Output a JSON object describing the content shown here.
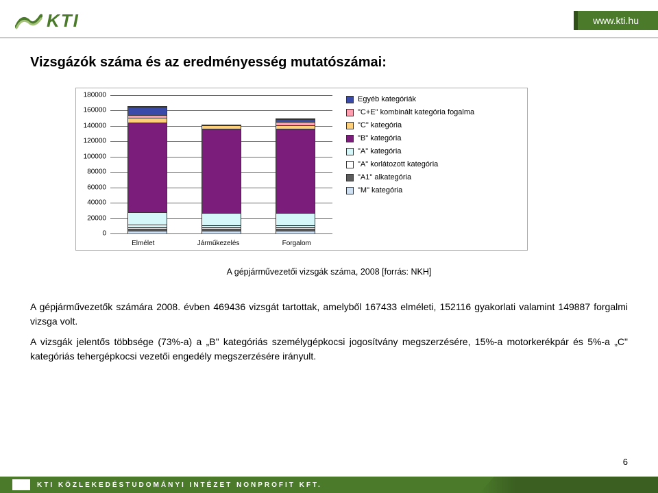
{
  "header": {
    "logo_text": "KTI",
    "url": "www.kti.hu"
  },
  "title": "Vizsgázók száma és az eredményesség mutatószámai:",
  "chart": {
    "type": "stacked-bar",
    "ymax": 180000,
    "ytick_step": 20000,
    "yticks": [
      "0",
      "20000",
      "40000",
      "60000",
      "80000",
      "100000",
      "120000",
      "140000",
      "160000",
      "180000"
    ],
    "categories": [
      "Elmélet",
      "Járműkezelés",
      "Forgalom"
    ],
    "series": [
      {
        "name": "Egyéb kategóriák",
        "color": "#3a4aa8"
      },
      {
        "name": "\"C+E\" kombinált kategória fogalma",
        "color": "#ff9fb0"
      },
      {
        "name": "\"C\" kategória",
        "color": "#ffd07a"
      },
      {
        "name": "\"B\" kategória",
        "color": "#7b1e7b"
      },
      {
        "name": "\"A\" kategória",
        "color": "#d6f7fa"
      },
      {
        "name": "\"A\" korlátozott kategória",
        "color": "#ffffff"
      },
      {
        "name": "\"A1\" alkategória",
        "color": "#5c5c5c"
      },
      {
        "name": "\"M\" kategória",
        "color": "#cfe0f2"
      }
    ],
    "stacks": [
      [
        4000,
        2000,
        2500,
        3000,
        16000,
        118000,
        6000,
        4000,
        10000
      ],
      [
        4000,
        2000,
        2000,
        3000,
        16000,
        110000,
        5000,
        0,
        0
      ],
      [
        4000,
        2000,
        2000,
        3000,
        16000,
        110000,
        5000,
        4000,
        4000
      ]
    ],
    "stack_colors": [
      "#cfe0f2",
      "#5c5c5c",
      "#ffffff",
      "#d6f7fa",
      "#d6f7fa",
      "#7b1e7b",
      "#ffd07a",
      "#ff9fb0",
      "#3a4aa8"
    ],
    "background_color": "#ffffff",
    "gridline_color": "#666666",
    "text_color": "#000000"
  },
  "caption": "A gépjárművezetői vizsgák száma, 2008 [forrás: NKH]",
  "body": {
    "p1": "A gépjárművezetők számára 2008. évben 469436 vizsgát tartottak, amelyből 167433 elméleti, 152116 gyakorlati valamint 149887 forgalmi vizsga volt.",
    "p2": "A vizsgák jelentős többsége (73%-a) a „B\" kategóriás személygépkocsi jogosítvány megszerzésére, 15%-a motorkerékpár és 5%-a „C\" kategóriás tehergépkocsi vezetői engedély megszerzésére irányult."
  },
  "page_number": "6",
  "footer": {
    "text": "KTI KÖZLEKEDÉSTUDOMÁNYI INTÉZET NONPROFIT KFT."
  },
  "colors": {
    "brand_green": "#4a7a2a",
    "brand_green_dark": "#2f5016"
  }
}
